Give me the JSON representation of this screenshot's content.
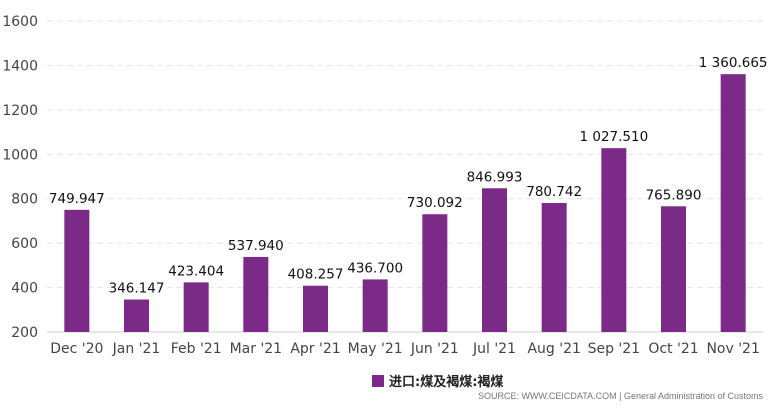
{
  "chart_data": {
    "type": "bar",
    "categories": [
      "Dec '20",
      "Jan '21",
      "Feb '21",
      "Mar '21",
      "Apr '21",
      "May '21",
      "Jun '21",
      "Jul '21",
      "Aug '21",
      "Sep '21",
      "Oct '21",
      "Nov '21"
    ],
    "series": [
      {
        "name": "进口:煤及褐煤:褐煤",
        "values": [
          749.947,
          346.147,
          423.404,
          537.94,
          408.257,
          436.7,
          730.092,
          846.993,
          780.742,
          1027.51,
          765.89,
          1360.665
        ],
        "labels": [
          "749.947",
          "346.147",
          "423.404",
          "537.940",
          "408.257",
          "436.700",
          "730.092",
          "846.993",
          "780.742",
          "1 027.510",
          "765.890",
          "1 360.665"
        ]
      }
    ],
    "ylim": [
      200,
      1600
    ],
    "yticks": [
      "200",
      "400",
      "600",
      "800",
      "1000",
      "1200",
      "1400",
      "1600"
    ],
    "grid": true,
    "bar_color": "#7b2a88",
    "legend_position": "bottom-center"
  },
  "legend": {
    "label": "进口:煤及褐煤:褐煤"
  },
  "source": "SOURCE: WWW.CEICDATA.COM | General Administration of Customs"
}
